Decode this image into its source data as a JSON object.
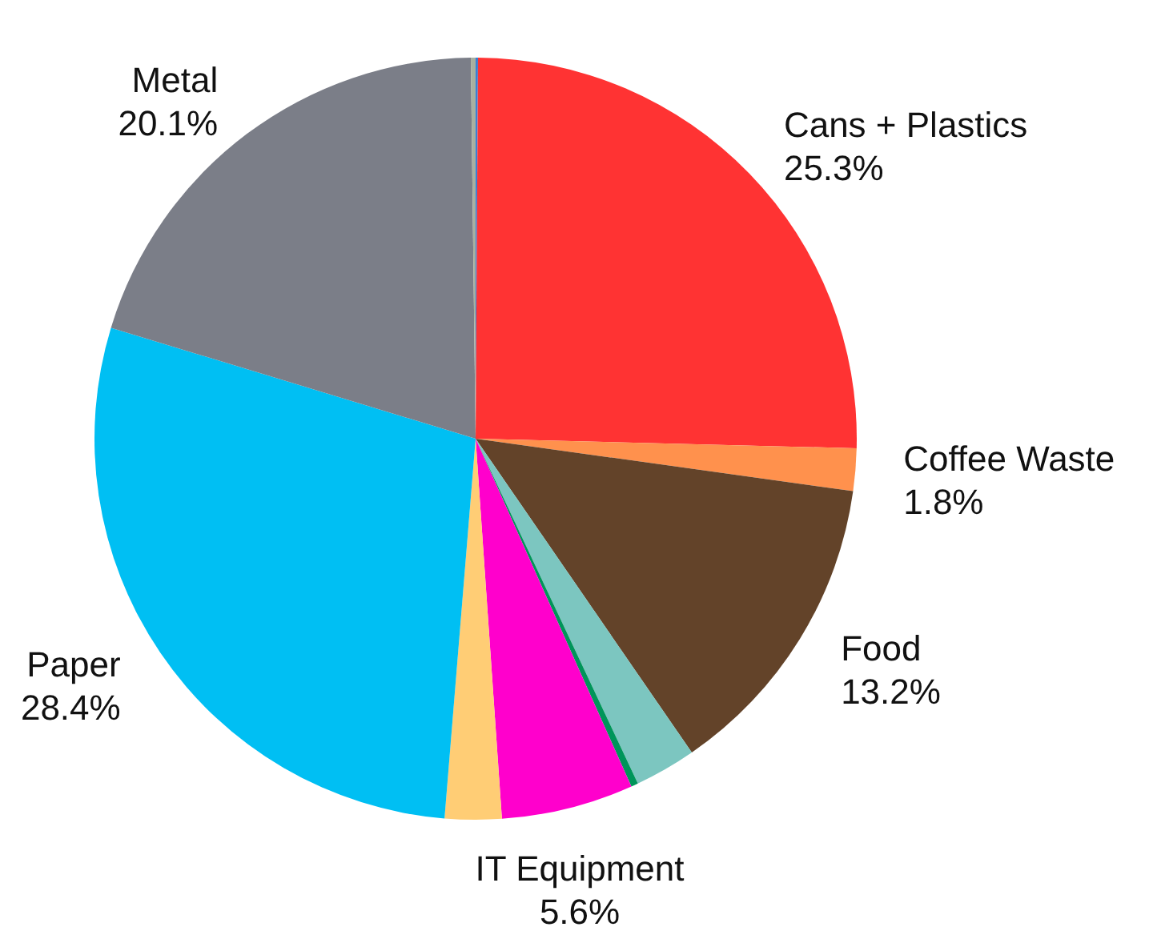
{
  "chart_data": {
    "type": "pie",
    "categories": [
      null,
      "Cans + Plastics",
      "Coffee Waste",
      "Food",
      null,
      null,
      "IT Equipment",
      null,
      "Paper",
      "Metal",
      null
    ],
    "values": [
      0.1,
      25.3,
      1.8,
      13.2,
      2.6,
      0.3,
      5.6,
      2.4,
      28.4,
      20.1,
      0.2
    ],
    "colors": [
      "#3a7fd5",
      "#ff3333",
      "#ff914d",
      "#634329",
      "#7cc6c0",
      "#00955a",
      "#ff00cc",
      "#ffcd75",
      "#00bff3",
      "#7b7e88",
      "#a8b0a0"
    ],
    "value_labels": [
      null,
      "25.3%",
      "1.8%",
      "13.2%",
      null,
      null,
      "5.6%",
      null,
      "28.4%",
      "20.1%",
      null
    ]
  }
}
